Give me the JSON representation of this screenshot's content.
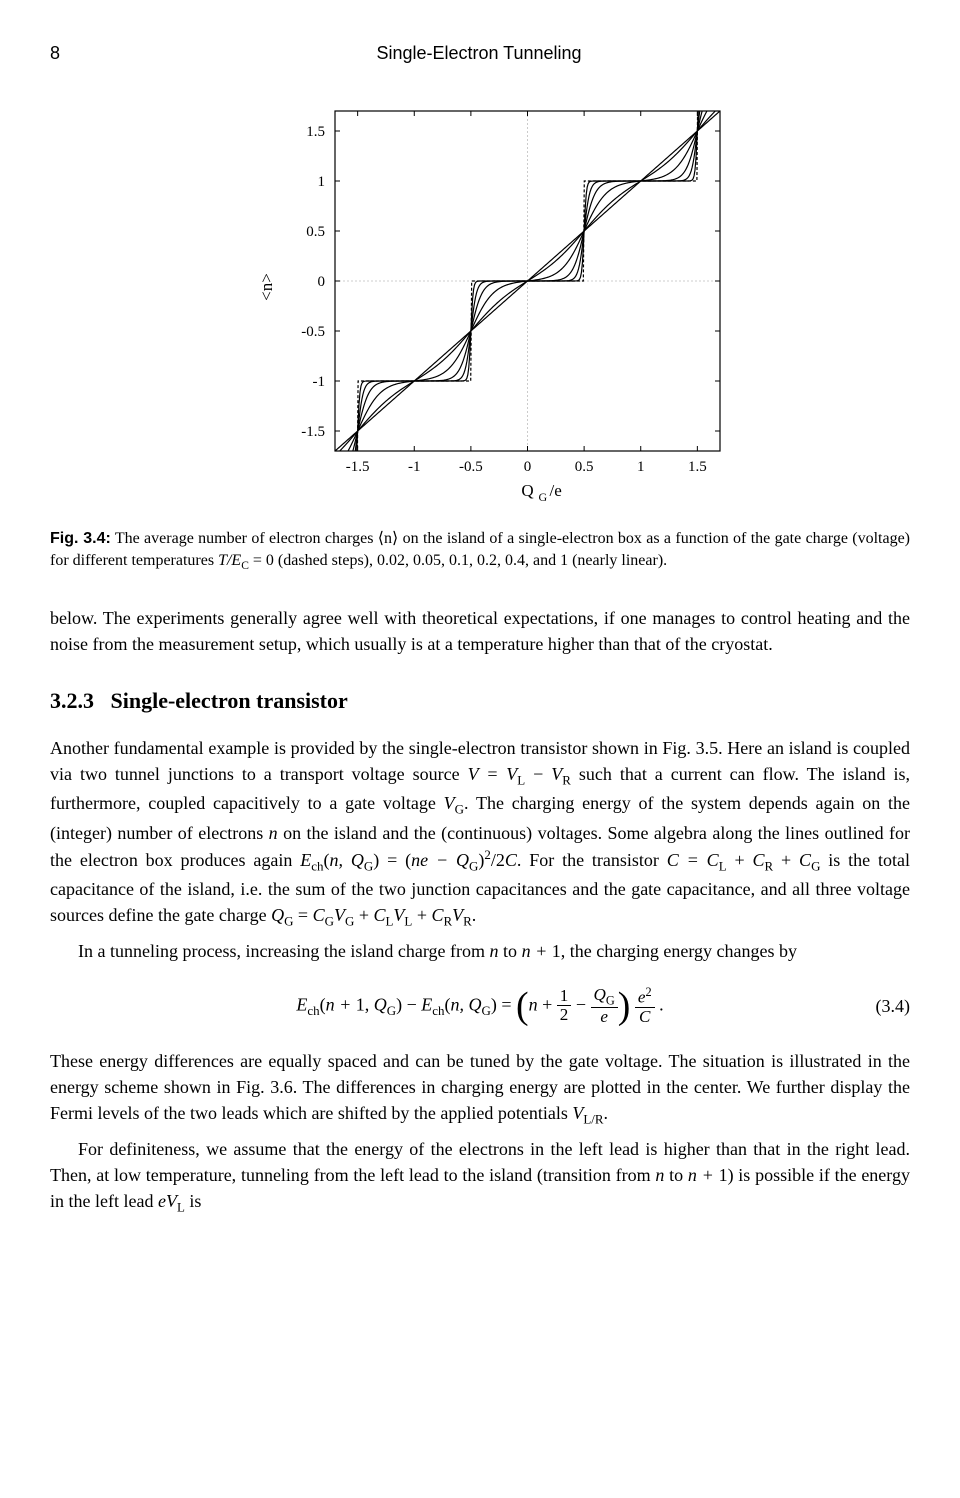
{
  "header": {
    "page_number": "8",
    "running_title": "Single-Electron Tunneling"
  },
  "figure": {
    "type": "line",
    "xlabel": "Q_G/e",
    "ylabel": "<n>",
    "xlim": [
      -1.7,
      1.7
    ],
    "ylim": [
      -1.7,
      1.7
    ],
    "xticks": [
      -1.5,
      -1,
      -0.5,
      0,
      0.5,
      1,
      1.5
    ],
    "yticks": [
      -1.5,
      -1,
      -0.5,
      0,
      0.5,
      1,
      1.5
    ],
    "xtick_labels": [
      "-1.5",
      "-1",
      "-0.5",
      "0",
      "0.5",
      "1",
      "1.5"
    ],
    "ytick_labels": [
      "-1.5",
      "-1",
      "-0.5",
      "0",
      "0.5",
      "1",
      "1.5"
    ],
    "label_fontsize": 17,
    "tick_fontsize": 15,
    "background_color": "#ffffff",
    "axis_color": "#000000",
    "grid_color": "#bfbfbf",
    "grid_dash": "2,2",
    "gridlines_x": [
      0
    ],
    "gridlines_y": [
      0
    ],
    "line_color": "#000000",
    "line_width": 1.2,
    "dashed_step_dash": "3,2",
    "temperatures": [
      0,
      0.02,
      0.05,
      0.1,
      0.2,
      0.4,
      1
    ]
  },
  "caption": {
    "label": "Fig. 3.4:",
    "text_part1": " The average number of electron charges ⟨n⟩ on the island of a single-electron box as a function of the gate charge (voltage) for different temperatures ",
    "text_temps": "T/E_C = 0 (dashed steps), 0.02, 0.05, 0.1, 0.2, 0.4, and 1 (nearly linear)."
  },
  "para_below": "below. The experiments generally agree well with theoretical expectations, if one manages to control heating and the noise from the measurement setup, which usually is at a temperature higher than that of the cryostat.",
  "section": {
    "number": "3.2.3",
    "title": "Single-electron transistor"
  },
  "para1_a": "Another fundamental example is provided by the single-electron transistor shown in Fig. 3.5. Here an island is coupled via two tunnel junctions to a transport voltage source ",
  "para1_b": " such that a current can flow. The island is, furthermore, coupled capacitively to a gate voltage ",
  "para1_c": ". The charging energy of the system depends again on the (integer) number of electrons ",
  "para1_d": " on the island and the (continuous) voltages. Some algebra along the lines outlined for the electron box produces again ",
  "para1_e": ". For the transistor ",
  "para1_f": " is the total capacitance of the island, i.e. the sum of the two junction capacitances and the gate capacitance, and all three voltage sources define the gate charge ",
  "para1_g": ".",
  "para2_a": "In a tunneling process, increasing the island charge from ",
  "para2_b": " to ",
  "para2_c": ", the charging energy changes by",
  "eq_number": "(3.4)",
  "para3": "These energy differences are equally spaced and can be tuned by the gate voltage. The situation is illustrated in the energy scheme shown in Fig. 3.6. The differences in charging energy are plotted in the center. We further display the Fermi levels of the two leads which are shifted by the applied potentials ",
  "para3_end": ".",
  "para4_a": "For definiteness, we assume that the energy of the electrons in the left lead is higher than that in the right lead. Then, at low temperature, tunneling from the left lead to the island (transition from ",
  "para4_b": " to ",
  "para4_c": ") is possible if the energy in the left lead ",
  "para4_d": " is"
}
